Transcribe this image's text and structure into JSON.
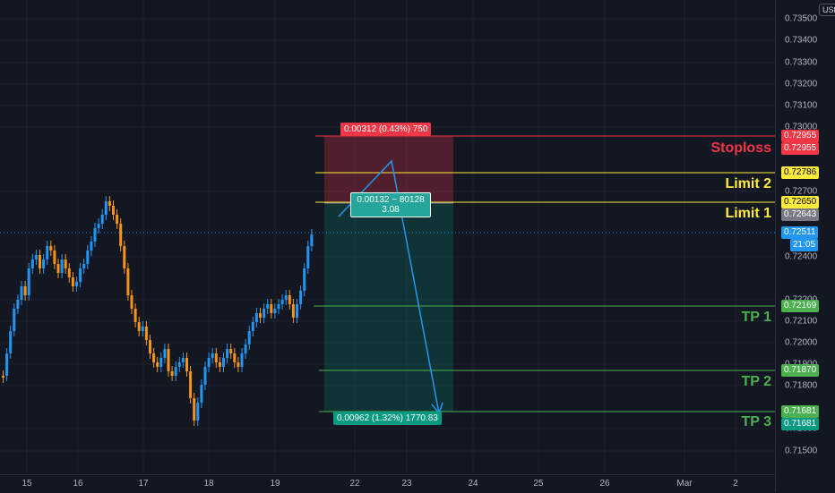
{
  "currency": "USD",
  "y_ticks": [
    "0.73500",
    "0.73400",
    "0.73300",
    "0.73200",
    "0.73100",
    "0.73000",
    "0.72700",
    "0.72400",
    "0.72200",
    "0.72100",
    "0.72000",
    "0.71900",
    "0.71800",
    "0.71600",
    "0.71500"
  ],
  "x_ticks": [
    "15",
    "16",
    "17",
    "18",
    "19",
    "22",
    "23",
    "24",
    "25",
    "26",
    "Mar",
    "2"
  ],
  "levels": {
    "stoploss": {
      "label": "Stoploss",
      "price": "0.72955",
      "color": "#f23645"
    },
    "limit2": {
      "label": "Limit 2",
      "price": "0.72786",
      "color": "#ffeb3b"
    },
    "limit1": {
      "label": "Limit 1",
      "price": "0.72650",
      "color": "#ffeb3b",
      "extra_price": "0.72643"
    },
    "tp1": {
      "label": "TP 1",
      "price": "0.72169",
      "color": "#4caf50"
    },
    "tp2": {
      "label": "TP 2",
      "price": "0.71870",
      "color": "#4caf50"
    },
    "tp3": {
      "label": "TP 3",
      "price": "0.71681",
      "color": "#4caf50",
      "extra_price": "0.71681"
    }
  },
  "current": {
    "price": "0.72511",
    "countdown": "21:05"
  },
  "position": {
    "stop_info": "0.00312 (0.43%) 750",
    "entry_info_line1": "0.00132 ~ 80128",
    "entry_info_line2": "3.08",
    "target_info": "0.00962 (1.32%) 1770.83"
  },
  "colors": {
    "bull": "#2196f3",
    "bear": "#f7931a",
    "red": "#f23645",
    "yellow": "#ffeb3b",
    "green": "#4caf50",
    "teal": "#089981"
  }
}
